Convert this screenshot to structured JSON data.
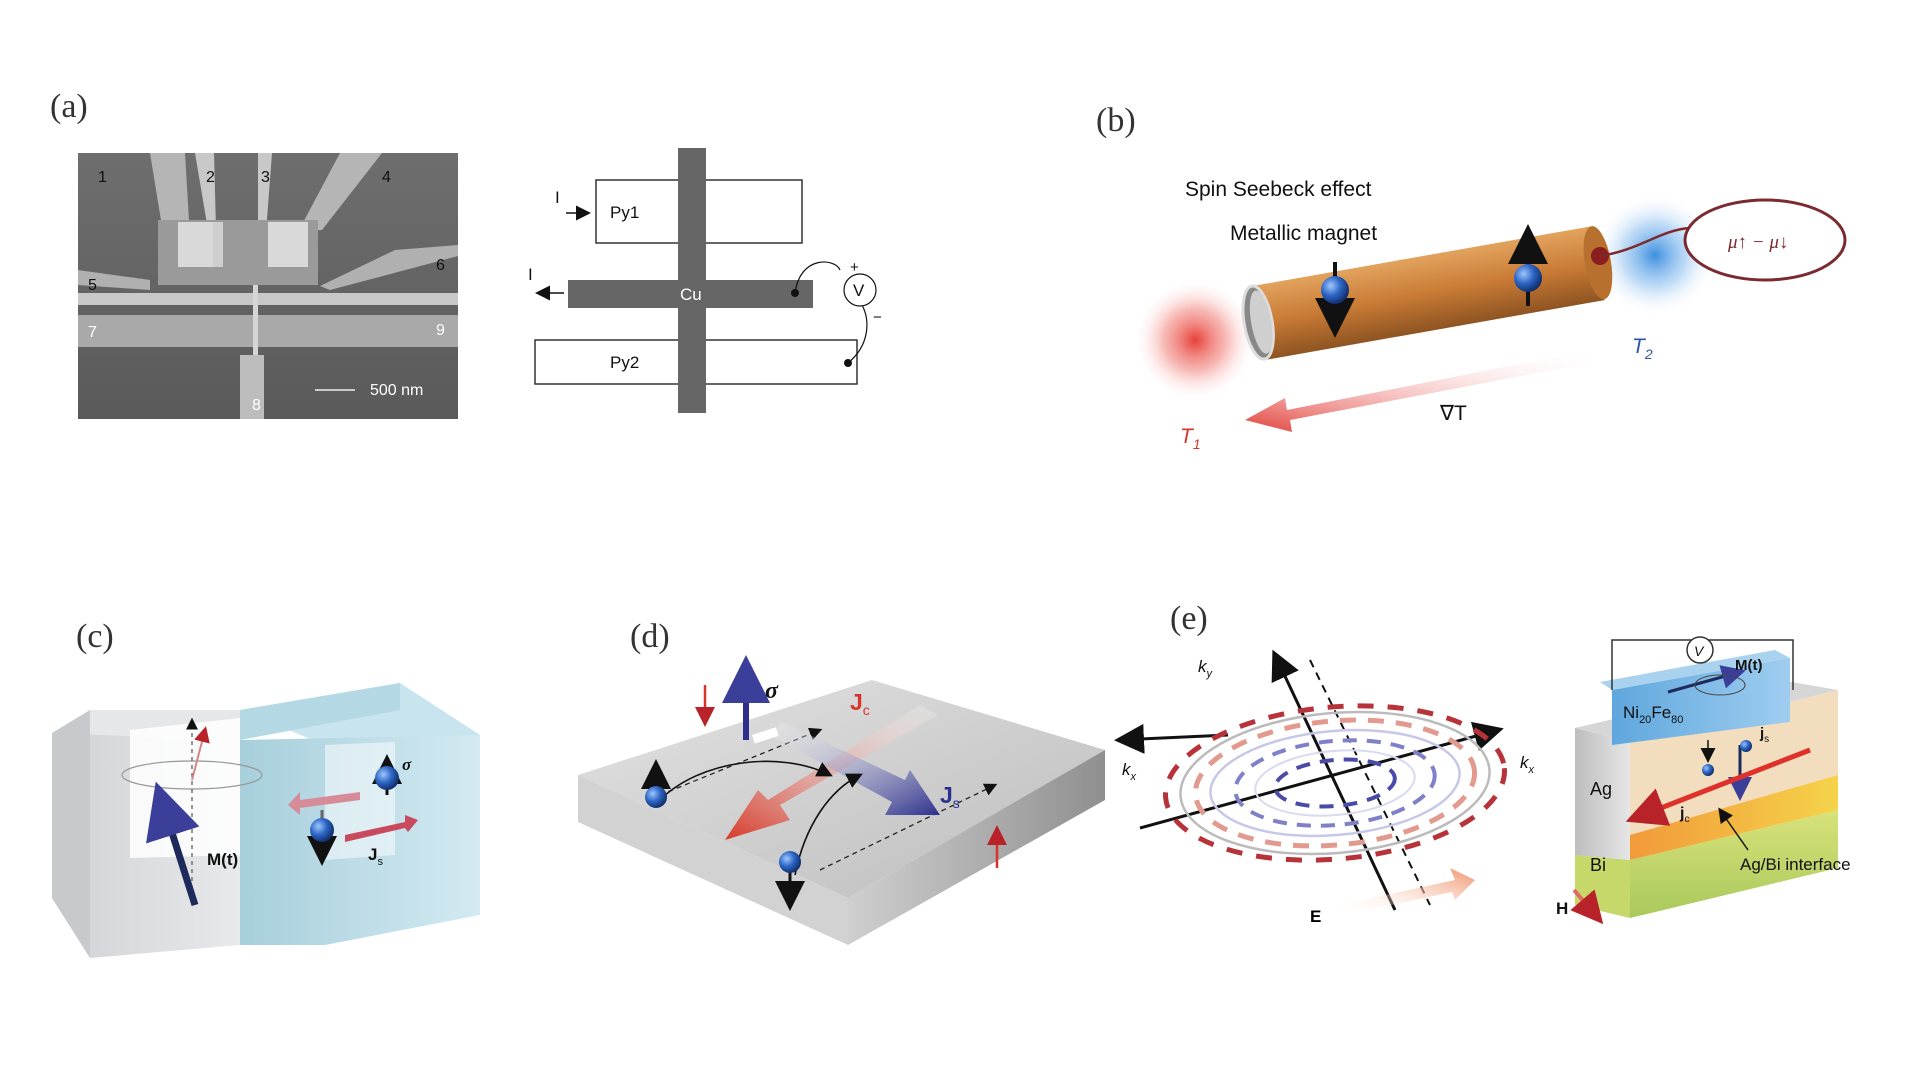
{
  "panels": {
    "a": {
      "label": "(a)",
      "sem_numbers": [
        "1",
        "2",
        "3",
        "4",
        "5",
        "6",
        "7",
        "8",
        "9"
      ],
      "scale_bar": "500 nm",
      "schematic": {
        "py1": "Py1",
        "py2": "Py2",
        "cu": "Cu",
        "current_in": "I",
        "current_out": "I",
        "voltmeter": "V",
        "plus": "+",
        "minus": "−"
      }
    },
    "b": {
      "label": "(b)",
      "title": "Spin Seebeck effect",
      "subtitle": "Metallic magnet",
      "mu": "μ↑ − μ↓",
      "t1": "T",
      "t1_sub": "1",
      "t2": "T",
      "t2_sub": "2",
      "grad": "∇T"
    },
    "c": {
      "label": "(c)",
      "magnetization": "M(t)",
      "sigma": "σ",
      "js": "J",
      "js_sub": "s"
    },
    "d": {
      "label": "(d)",
      "sigma": "σ",
      "jc": "J",
      "jc_sub": "c",
      "js": "J",
      "js_sub": "s"
    },
    "e": {
      "label": "(e)",
      "ky": "k",
      "ky_sub": "y",
      "kx_left": "k",
      "kx_left_sub": "x",
      "kx_right": "k",
      "kx_right_sub": "x",
      "efield": "E",
      "voltmeter": "V",
      "mt": "M(t)",
      "nife": "Ni",
      "nife_sub1": "20",
      "nife_fe": "Fe",
      "nife_sub2": "80",
      "ag": "Ag",
      "bi": "Bi",
      "js": "j",
      "js_sub": "s",
      "jc": "j",
      "jc_sub": "c",
      "interface": "Ag/Bi interface",
      "h": "H"
    }
  },
  "colors": {
    "accent_red": "#d9342b",
    "accent_blue": "#2a3f8f",
    "copper": "#c87a3a",
    "sem_gray": "#8a8a8a"
  }
}
